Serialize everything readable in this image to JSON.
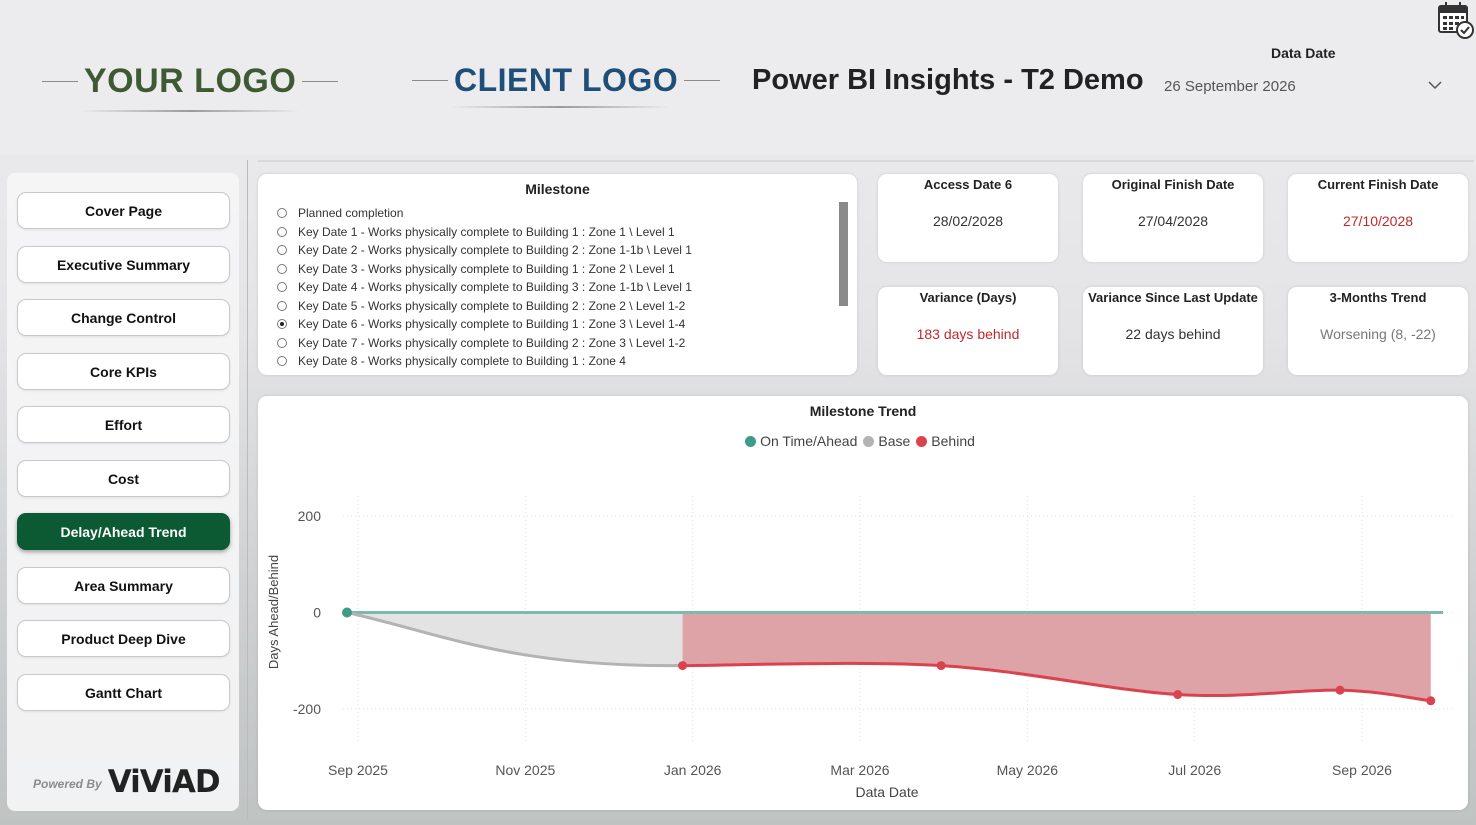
{
  "header": {
    "your_logo": "YOUR LOGO",
    "client_logo": "CLIENT LOGO",
    "title": "Power BI Insights - T2 Demo",
    "data_date_label": "Data Date",
    "data_date_value": "26 September 2026",
    "calendar_icon": "calendar-check-icon",
    "dropdown_icon": "chevron-down-icon"
  },
  "nav": {
    "items": [
      "Cover Page",
      "Executive Summary",
      "Change Control",
      "Core KPIs",
      "Effort",
      "Cost",
      "Delay/Ahead Trend",
      "Area Summary",
      "Product Deep Dive",
      "Gantt Chart"
    ],
    "active": "Delay/Ahead Trend",
    "powered_by": "Powered By",
    "brand": "ViViAD"
  },
  "milestone": {
    "title": "Milestone",
    "items": [
      "Planned completion",
      "Key Date 1 - Works physically complete to Building 1 : Zone 1 \\ Level 1",
      "Key Date 2 - Works physically complete to Building 2 : Zone 1-1b \\ Level 1",
      "Key Date 3 - Works physically complete to Building 1 : Zone 2 \\ Level 1",
      "Key Date 4 - Works physically complete to Building 3 : Zone 1-1b \\ Level 1",
      "Key Date 5 - Works physically complete to Building 2 : Zone 2 \\ Level 1-2",
      "Key Date 6 - Works physically complete to Building 1 : Zone 3 \\ Level 1-4",
      "Key Date 7 - Works physically complete to Building 2 : Zone 3 \\ Level 1-2",
      "Key Date 8 - Works physically complete to Building 1 : Zone 4"
    ],
    "selected_index": 6
  },
  "kpis": {
    "access_date": {
      "label": "Access Date 6",
      "value": "28/02/2028"
    },
    "original_finish": {
      "label": "Original Finish Date",
      "value": "27/04/2028"
    },
    "current_finish": {
      "label": "Current Finish Date",
      "value": "27/10/2028"
    },
    "variance": {
      "label": "Variance (Days)",
      "value": "183 days behind"
    },
    "variance_since": {
      "label": "Variance Since Last Update",
      "value": "22 days behind"
    },
    "trend": {
      "label": "3-Months Trend",
      "value": "Worsening (8, -22)"
    }
  },
  "colors": {
    "on_time": "#3f9a88",
    "base": "#b3b3b3",
    "behind": "#d9434f",
    "behind_fill": "#dea3a7",
    "base_fill": "#e3e3e3",
    "nav_active": "#0b5a33",
    "red_text": "#c0282d"
  },
  "chart_data": {
    "type": "line",
    "title": "Milestone Trend",
    "xlabel": "Data Date",
    "ylabel": "Days Ahead/Behind",
    "legend": [
      "On Time/Ahead",
      "Base",
      "Behind"
    ],
    "legend_position": "top-center",
    "x_ticks": [
      "Sep 2025",
      "Nov 2025",
      "Jan 2026",
      "Mar 2026",
      "May 2026",
      "Jul 2026",
      "Sep 2026"
    ],
    "y_ticks": [
      200,
      0,
      -200
    ],
    "ylim": [
      -280,
      270
    ],
    "grid": true,
    "series": [
      {
        "name": "On Time/Ahead",
        "points": [
          {
            "x": "2025-08-28",
            "y": 0
          }
        ]
      },
      {
        "name": "Base",
        "points": [
          {
            "x": "2025-08-28",
            "y": 0
          },
          {
            "x": "2025-12-28",
            "y": -110
          }
        ]
      },
      {
        "name": "Behind",
        "points": [
          {
            "x": "2025-12-28",
            "y": -110
          },
          {
            "x": "2026-04-01",
            "y": -110
          },
          {
            "x": "2026-06-26",
            "y": -170
          },
          {
            "x": "2026-08-24",
            "y": -161
          },
          {
            "x": "2026-09-26",
            "y": -183
          }
        ]
      }
    ]
  }
}
